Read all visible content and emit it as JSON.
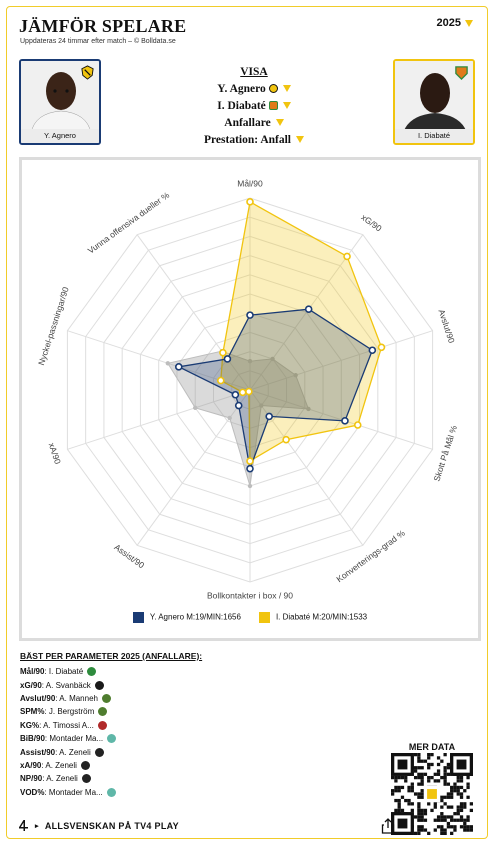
{
  "header": {
    "title": "JÄMFÖR SPELARE",
    "subtitle": "Uppdateras 24 timmar efter match – © Bolldata.se",
    "year": "2025"
  },
  "players": {
    "left": {
      "name": "Y. Agnero",
      "color": "#1a3b74"
    },
    "right": {
      "name": "I. Diabaté",
      "color": "#f1c40f"
    }
  },
  "selectors": {
    "visa": "VISA",
    "player1": "Y. Agnero",
    "player2": "I. Diabaté",
    "position": "Anfallare",
    "preset": "Prestation: Anfall"
  },
  "chart_data": {
    "type": "radar",
    "axes": [
      "Mål/90",
      "xG/90",
      "Avslut/90",
      "Skott På Mål %",
      "Konverterings-grad %",
      "Bollkontakter i box / 90",
      "Assist/90",
      "xA/90",
      "Nyckel-passningar/90",
      "Vunna offensiva dueller %"
    ],
    "range": [
      0,
      1
    ],
    "series": [
      {
        "name": "Y. Agnero M:19/MIN:1656",
        "color": "#1a3b74",
        "values": [
          0.39,
          0.52,
          0.67,
          0.52,
          0.17,
          0.41,
          0.1,
          0.08,
          0.39,
          0.2
        ]
      },
      {
        "name": "I. Diabaté M:20/MIN:1533",
        "color": "#f1c40f",
        "values": [
          0.98,
          0.86,
          0.72,
          0.59,
          0.32,
          0.37,
          0.01,
          0.04,
          0.16,
          0.24
        ]
      }
    ],
    "grid_rings": 10,
    "grey_background_values": [
      0.15,
      0.2,
      0.25,
      0.32,
      0.1,
      0.5,
      0.18,
      0.3,
      0.45,
      0.25
    ]
  },
  "best": {
    "heading": "BÄST PER PARAMETER 2025 (ANFALLARE):",
    "items": [
      {
        "param": "Mål/90",
        "player": "I. Diabaté",
        "club_color": "#2e8b3d"
      },
      {
        "param": "xG/90",
        "player": "A. Svanbäck",
        "club_color": "#1a1a1a"
      },
      {
        "param": "Avslut/90",
        "player": "A. Manneh",
        "club_color": "#4f7d2f"
      },
      {
        "param": "SPM%",
        "player": "J. Bergström",
        "club_color": "#4f7d2f"
      },
      {
        "param": "KG%",
        "player": "A. Timossi A...",
        "club_color": "#b02a2a"
      },
      {
        "param": "BiB/90",
        "player": "Montader Ma...",
        "club_color": "#5fb7a8"
      },
      {
        "param": "Assist/90",
        "player": "A. Zeneli",
        "club_color": "#222222"
      },
      {
        "param": "xA/90",
        "player": "A. Zeneli",
        "club_color": "#222222"
      },
      {
        "param": "NP/90",
        "player": "A. Zeneli",
        "club_color": "#222222"
      },
      {
        "param": "VOD%",
        "player": "Montader Ma...",
        "club_color": "#5fb7a8"
      }
    ]
  },
  "more_data": "MER DATA",
  "footer": {
    "tv_text": "ALLSVENSKAN PÅ TV4 PLAY"
  }
}
